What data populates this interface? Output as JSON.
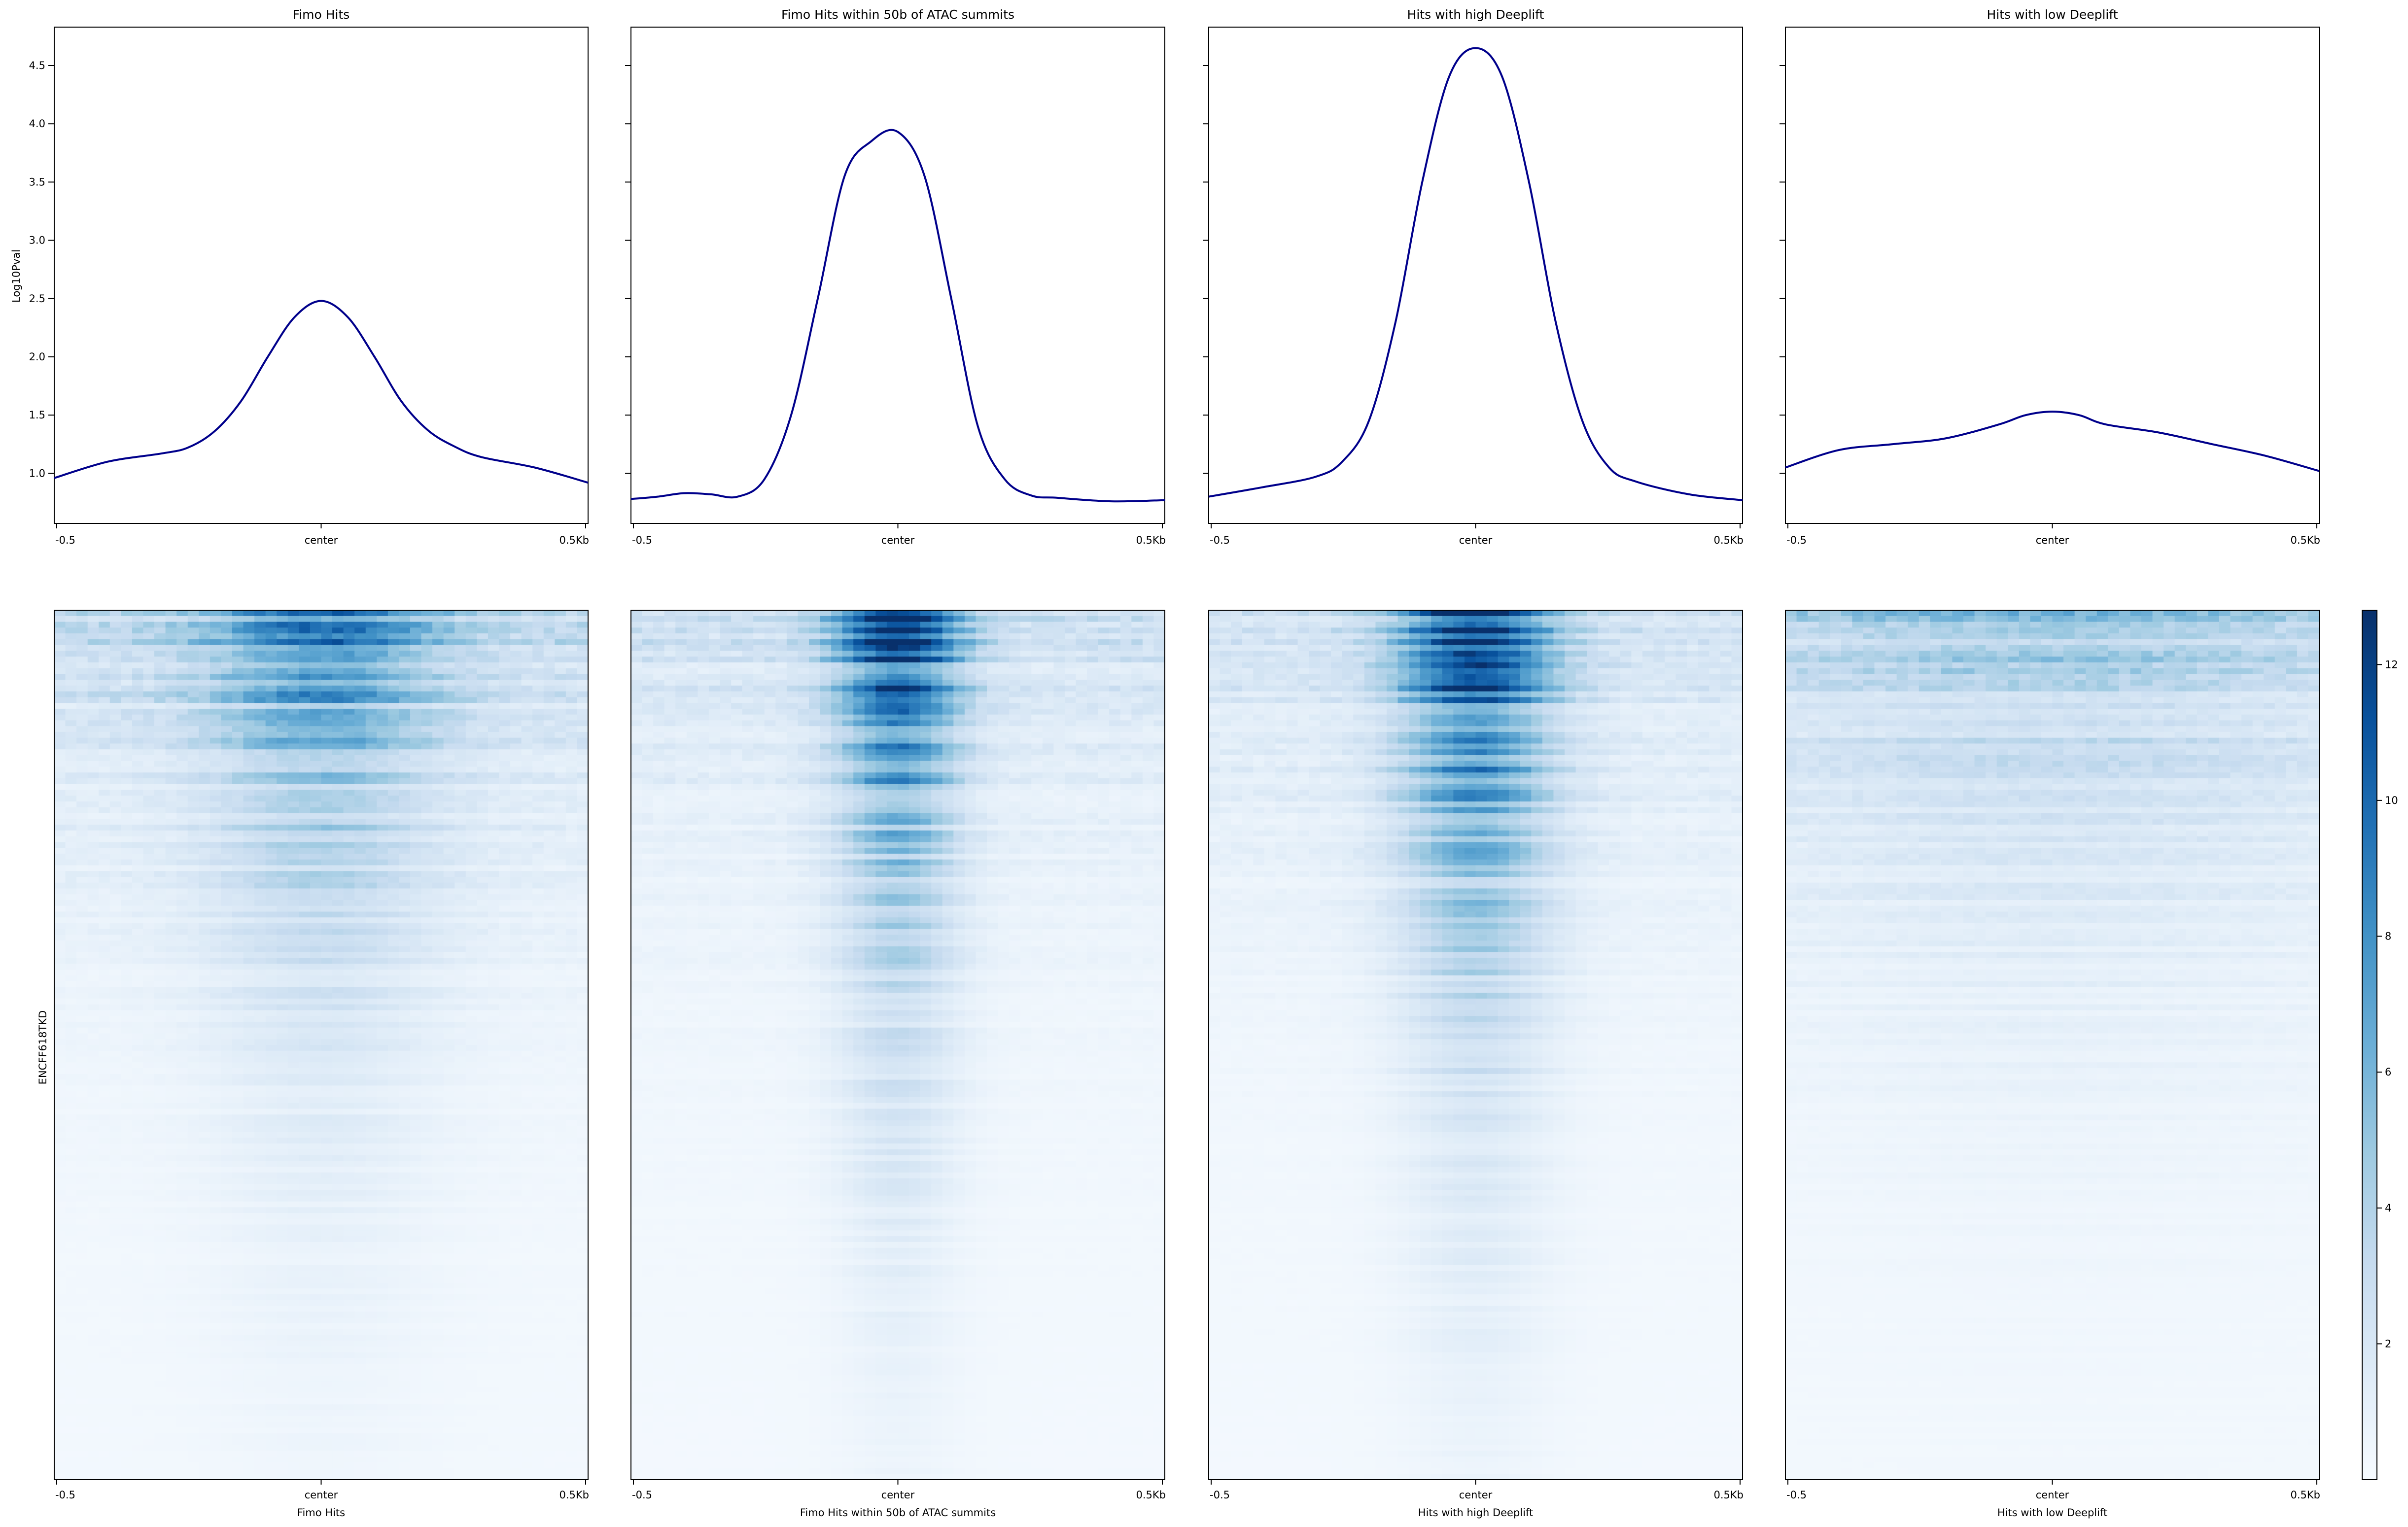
{
  "chart_data": [
    {
      "type": "line",
      "title": "Fimo Hits",
      "ylabel": "Log10Pval",
      "xticks": [
        "-0.5",
        "center",
        "0.5Kb"
      ],
      "yticks": [
        "1.0",
        "1.5",
        "2.0",
        "2.5",
        "3.0",
        "3.5",
        "4.0",
        "4.5"
      ],
      "ylim": [
        0.57,
        4.83
      ],
      "x": [
        -0.5,
        -0.4,
        -0.3,
        -0.25,
        -0.2,
        -0.15,
        -0.1,
        -0.05,
        0.0,
        0.05,
        0.1,
        0.15,
        0.2,
        0.25,
        0.3,
        0.4,
        0.5
      ],
      "y": [
        0.96,
        1.1,
        1.17,
        1.22,
        1.36,
        1.62,
        2.0,
        2.34,
        2.48,
        2.34,
        2.0,
        1.62,
        1.37,
        1.23,
        1.14,
        1.05,
        0.92
      ]
    },
    {
      "type": "line",
      "title": "Fimo Hits within 50b of ATAC summits",
      "xticks": [
        "-0.5",
        "center",
        "0.5Kb"
      ],
      "x": [
        -0.5,
        -0.45,
        -0.4,
        -0.35,
        -0.3,
        -0.25,
        -0.2,
        -0.15,
        -0.1,
        -0.05,
        0.0,
        0.05,
        0.1,
        0.15,
        0.2,
        0.25,
        0.3,
        0.4,
        0.5
      ],
      "y": [
        0.78,
        0.8,
        0.83,
        0.82,
        0.8,
        0.95,
        1.5,
        2.5,
        3.55,
        3.85,
        3.93,
        3.55,
        2.5,
        1.4,
        0.95,
        0.81,
        0.79,
        0.76,
        0.77
      ]
    },
    {
      "type": "line",
      "title": "Hits with high Deeplift",
      "xticks": [
        "-0.5",
        "center",
        "0.5Kb"
      ],
      "x": [
        -0.5,
        -0.4,
        -0.3,
        -0.25,
        -0.2,
        -0.15,
        -0.1,
        -0.05,
        0.0,
        0.05,
        0.1,
        0.15,
        0.2,
        0.25,
        0.3,
        0.4,
        0.5
      ],
      "y": [
        0.8,
        0.88,
        0.97,
        1.1,
        1.45,
        2.3,
        3.5,
        4.4,
        4.65,
        4.4,
        3.5,
        2.3,
        1.45,
        1.05,
        0.93,
        0.82,
        0.77
      ]
    },
    {
      "type": "line",
      "title": "Hits with low Deeplift",
      "xticks": [
        "-0.5",
        "center",
        "0.5Kb"
      ],
      "x": [
        -0.5,
        -0.4,
        -0.3,
        -0.2,
        -0.1,
        -0.05,
        0.0,
        0.05,
        0.1,
        0.2,
        0.3,
        0.4,
        0.5
      ],
      "y": [
        1.05,
        1.2,
        1.25,
        1.3,
        1.42,
        1.5,
        1.53,
        1.5,
        1.42,
        1.35,
        1.25,
        1.15,
        1.02
      ]
    },
    {
      "type": "heatmap",
      "ylabel": "ENCFF618TKD",
      "colorbar": {
        "ticks": [
          2,
          4,
          6,
          8,
          10,
          12
        ],
        "range": [
          0,
          12.8
        ],
        "colors": [
          "#f7fbff",
          "#deebf7",
          "#c6dbef",
          "#9ecae1",
          "#6baed6",
          "#4292c6",
          "#2171b5",
          "#08519c",
          "#08306b"
        ]
      },
      "panels": [
        {
          "xlabel": "Fimo Hits",
          "xticks": [
            "-0.5",
            "center",
            "0.5Kb"
          ],
          "peak": 0.55,
          "base": 0.28,
          "width": 0.3
        },
        {
          "xlabel": "Fimo Hits within 50b of ATAC summits",
          "xticks": [
            "-0.5",
            "center",
            "0.5Kb"
          ],
          "peak": 0.95,
          "base": 0.22,
          "width": 0.16
        },
        {
          "xlabel": "Hits with high Deeplift",
          "xticks": [
            "-0.5",
            "center",
            "0.5Kb"
          ],
          "peak": 1.0,
          "base": 0.22,
          "width": 0.2
        },
        {
          "xlabel": "Hits with low Deeplift",
          "xticks": [
            "-0.5",
            "center",
            "0.5Kb"
          ],
          "peak": 0.18,
          "base": 0.25,
          "width": 0.7
        }
      ]
    }
  ],
  "colors": {
    "line": "#00008b",
    "frame": "#000000"
  }
}
